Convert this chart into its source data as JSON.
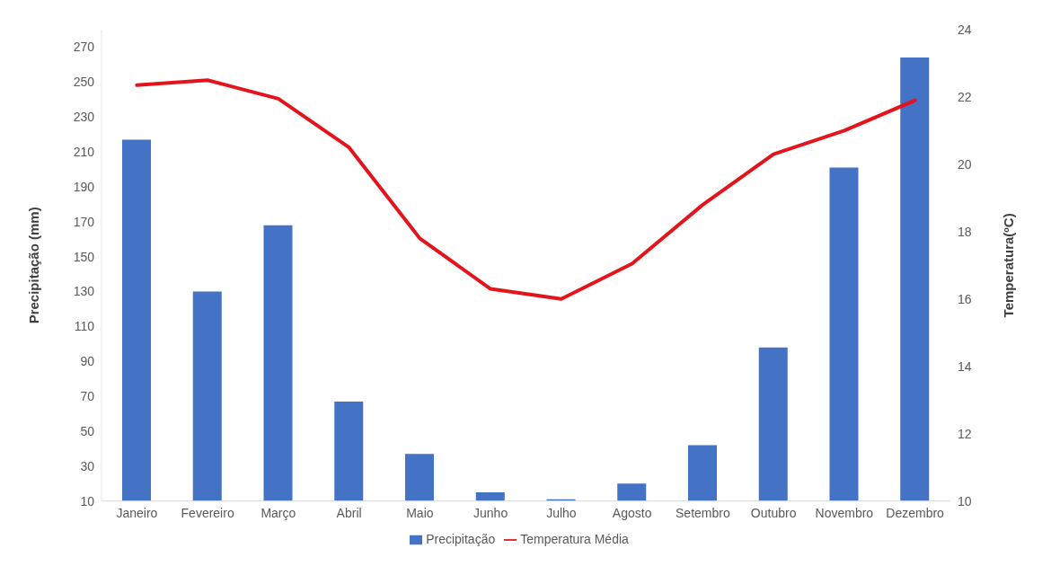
{
  "chart_data": {
    "type": "bar",
    "ylabel": "Precipitação (mm)",
    "y2label": "Temperatura(ºC)",
    "categories": [
      "Janeiro",
      "Fevereiro",
      "Março",
      "Abril",
      "Maio",
      "Junho",
      "Julho",
      "Agosto",
      "Setembro",
      "Outubro",
      "Novembro",
      "Dezembro"
    ],
    "series": [
      {
        "name": "Precipitação",
        "color": "#4472c4",
        "values": [
          217,
          130,
          168,
          67,
          37,
          15,
          11,
          20,
          42,
          98,
          201,
          264
        ]
      },
      {
        "name": "Temperatura Média",
        "type": "line",
        "axis": "y2",
        "color": "#e3141b",
        "marker": "none",
        "line_style": "solid",
        "values": [
          22.35,
          22.5,
          21.95,
          20.5,
          17.8,
          16.3,
          16.0,
          17.05,
          18.8,
          20.3,
          21.0,
          21.9
        ]
      }
    ],
    "ylim": [
      10,
      280
    ],
    "yticks": [
      10,
      30,
      50,
      70,
      90,
      110,
      130,
      150,
      170,
      190,
      210,
      230,
      250,
      270
    ],
    "y2lim": [
      10,
      24
    ],
    "y2ticks": [
      10,
      12,
      14,
      16,
      18,
      20,
      22,
      24
    ],
    "grid": false,
    "legend": "bottom"
  }
}
